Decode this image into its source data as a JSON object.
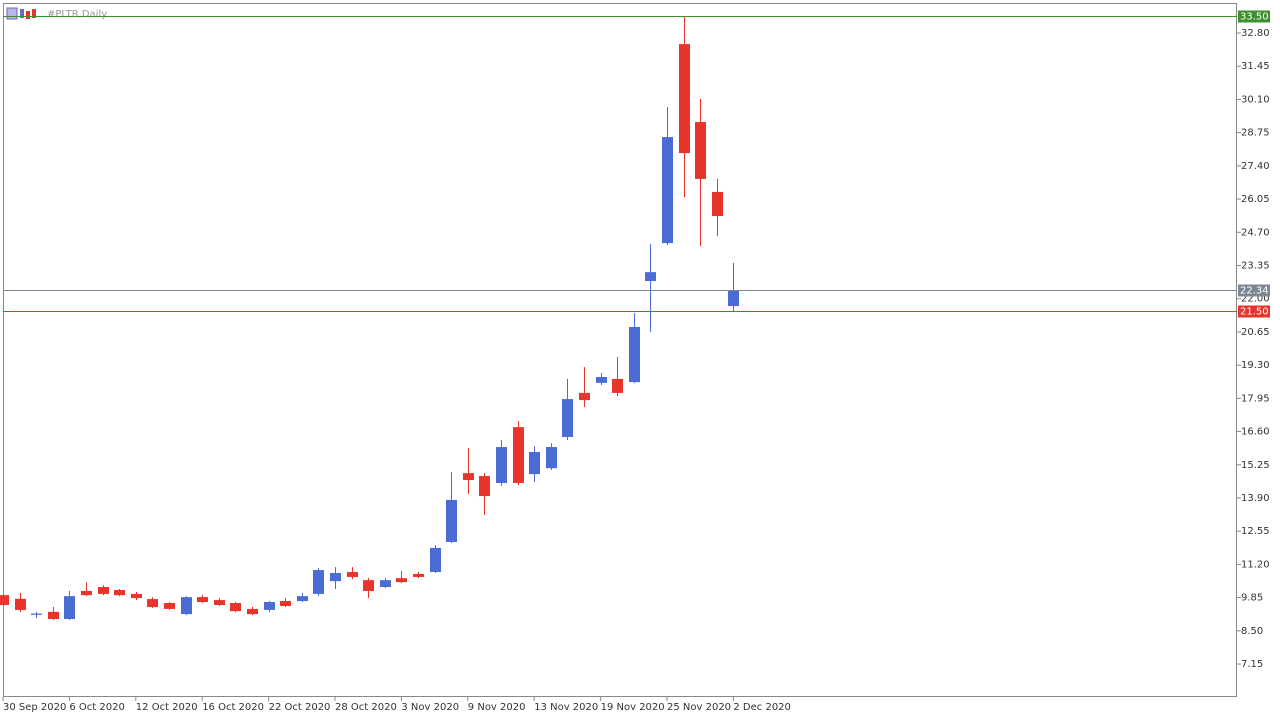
{
  "chart_data": {
    "type": "candlestick",
    "title": "#PLTR,Daily",
    "categories": [
      "30 Sep 2020",
      null,
      null,
      null,
      "6 Oct 2020",
      null,
      null,
      null,
      "12 Oct 2020",
      null,
      null,
      null,
      "16 Oct 2020",
      null,
      null,
      null,
      "22 Oct 2020",
      null,
      null,
      null,
      "28 Oct 2020",
      null,
      null,
      null,
      "3 Nov 2020",
      null,
      null,
      null,
      "9 Nov 2020",
      null,
      null,
      null,
      "13 Nov 2020",
      null,
      null,
      null,
      "19 Nov 2020",
      null,
      null,
      null,
      "25 Nov 2020",
      null,
      null,
      null,
      "2 Dec 2020"
    ],
    "open": [
      9.95,
      9.8,
      9.15,
      9.27,
      8.98,
      10.12,
      10.28,
      10.16,
      10.0,
      9.79,
      9.63,
      9.18,
      9.87,
      9.75,
      9.63,
      9.39,
      9.35,
      9.71,
      9.71,
      10.0,
      10.52,
      10.89,
      10.56,
      10.28,
      10.64,
      10.81,
      10.89,
      12.11,
      14.91,
      14.79,
      14.51,
      16.78,
      14.87,
      15.11,
      16.38,
      18.17,
      18.58,
      18.74,
      18.61,
      22.72,
      24.26,
      32.35,
      29.18,
      26.34,
      21.7
    ],
    "high": [
      10.0,
      10.05,
      9.27,
      9.47,
      10.12,
      10.48,
      10.36,
      10.2,
      10.08,
      9.87,
      9.67,
      9.91,
      9.95,
      9.83,
      9.67,
      9.47,
      9.71,
      9.83,
      10.04,
      11.05,
      11.09,
      11.09,
      10.64,
      10.64,
      10.93,
      10.89,
      11.99,
      14.95,
      15.93,
      14.91,
      16.25,
      17.03,
      16.01,
      16.13,
      18.74,
      19.22,
      18.98,
      19.63,
      21.42,
      24.22,
      29.79,
      33.49,
      30.12,
      26.87,
      23.45
    ],
    "low": [
      9.5,
      9.27,
      9.02,
      8.94,
      8.94,
      9.91,
      9.95,
      9.91,
      9.75,
      9.43,
      9.35,
      9.14,
      9.63,
      9.51,
      9.26,
      9.14,
      9.26,
      9.47,
      9.67,
      9.91,
      10.2,
      10.6,
      9.83,
      10.24,
      10.44,
      10.64,
      10.85,
      12.07,
      14.06,
      13.21,
      14.39,
      14.43,
      14.55,
      15.04,
      16.25,
      17.6,
      18.49,
      18.04,
      18.57,
      20.65,
      24.18,
      26.13,
      24.14,
      24.55,
      21.46
    ],
    "close": [
      9.55,
      9.35,
      9.2,
      8.98,
      9.91,
      9.95,
      10.0,
      9.95,
      9.83,
      9.47,
      9.39,
      9.87,
      9.67,
      9.55,
      9.3,
      9.18,
      9.67,
      9.51,
      9.91,
      10.97,
      10.85,
      10.69,
      10.12,
      10.56,
      10.48,
      10.69,
      11.87,
      13.82,
      14.63,
      13.98,
      15.97,
      14.51,
      15.77,
      15.97,
      17.92,
      17.88,
      18.82,
      18.17,
      20.85,
      23.08,
      28.57,
      27.92,
      26.87,
      25.36,
      22.34
    ],
    "up_color": "#4a6cd4",
    "down_color": "#e8342a",
    "ylim": [
      5.81,
      34.02
    ],
    "yticks": [
      {
        "value": 32.8,
        "label": "32.80"
      },
      31.45,
      {
        "value": 30.1,
        "label": "30.10"
      },
      28.75,
      {
        "value": 27.4,
        "label": "27.40"
      },
      26.05,
      {
        "value": 24.7,
        "label": "24.70"
      },
      23.35,
      {
        "value": 22,
        "label": "22.00"
      },
      20.65,
      {
        "value": 19.3,
        "label": "19.30"
      },
      17.95,
      {
        "value": 16.6,
        "label": "16.60"
      },
      15.25,
      {
        "value": 13.9,
        "label": "13.90"
      },
      12.55,
      {
        "value": 11.2,
        "label": "11.20"
      },
      9.85,
      {
        "value": 8.5,
        "label": "8.50"
      },
      7.15
    ],
    "price_lines": [
      {
        "value": 33.5,
        "label": "33.50",
        "color": "#3f8f2f"
      },
      {
        "value": 22.34,
        "label": "22.34",
        "color": "#7b8794"
      },
      {
        "value": 21.5,
        "label": "21.50",
        "color": "#e8342a"
      }
    ]
  }
}
